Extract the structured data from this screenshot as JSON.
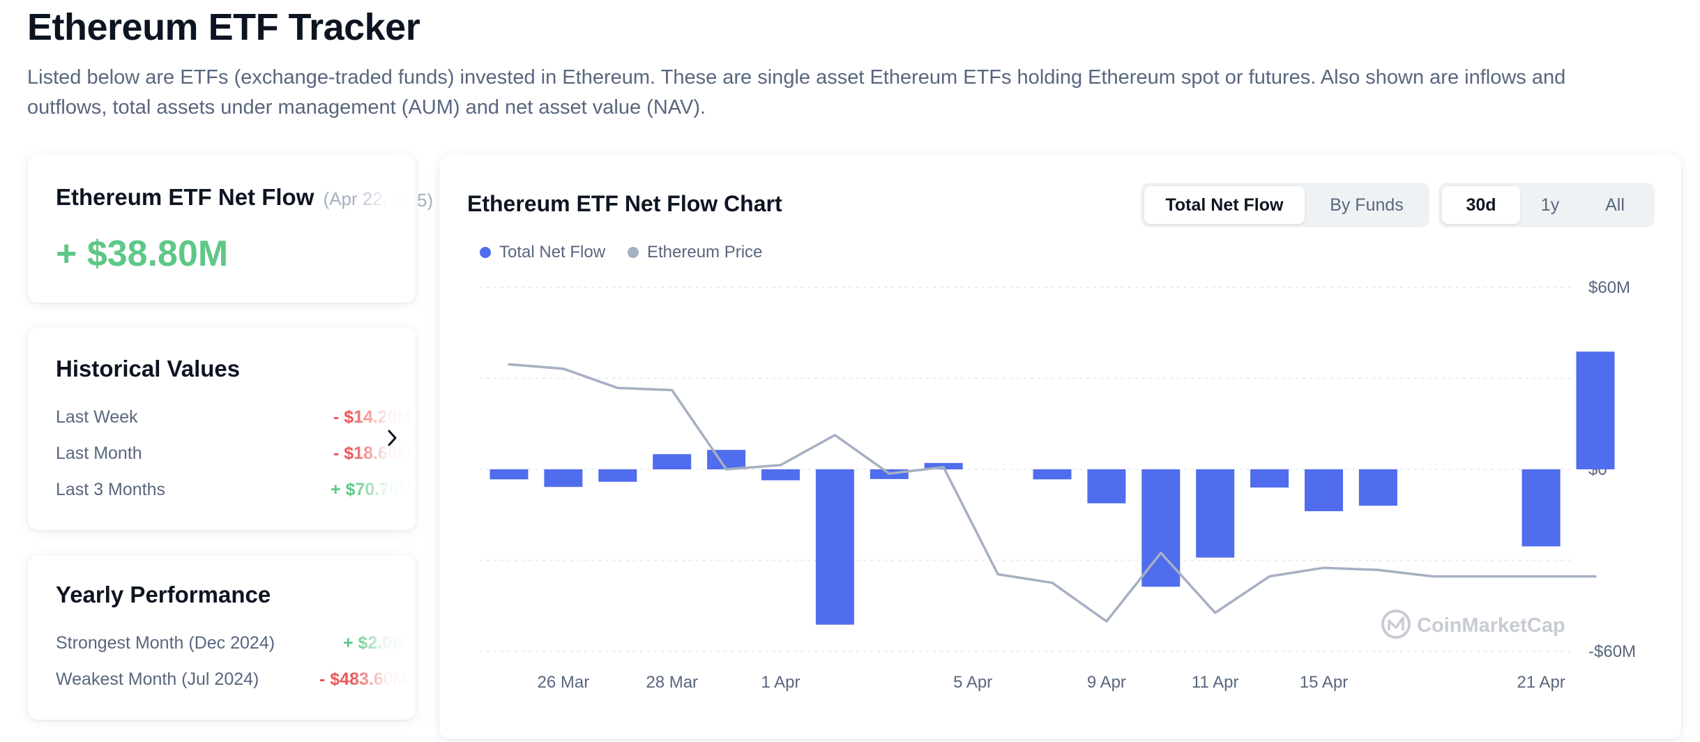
{
  "page": {
    "title": "Ethereum ETF Tracker",
    "description": "Listed below are ETFs (exchange-traded funds) invested in Ethereum. These are single asset Ethereum ETFs holding Ethereum spot or futures. Also shown are inflows and outflows, total assets under management (AUM) and net asset value (NAV)."
  },
  "net_flow_card": {
    "title": "Ethereum ETF Net Flow",
    "date": "(Apr 22, 2025)",
    "value": "+ $38.80M",
    "peek_text": "5)"
  },
  "historical": {
    "title": "Historical Values",
    "rows": [
      {
        "label": "Last Week",
        "value": "- $14.20M"
      },
      {
        "label": "Last Month",
        "value": "- $18.60M"
      },
      {
        "label": "Last 3 Months",
        "value": "+ $70.70M"
      }
    ]
  },
  "yearly": {
    "title": "Yearly Performance",
    "rows": [
      {
        "label": "Strongest Month",
        "period": "(Dec 2024)",
        "value": "+ $2.0B"
      },
      {
        "label": "Weakest Month",
        "period": "(Jul 2024)",
        "value": "- $483.60M"
      }
    ]
  },
  "chart_header": {
    "title": "Ethereum ETF Net Flow Chart",
    "view_tabs": [
      "Total Net Flow",
      "By Funds"
    ],
    "active_view": 0,
    "range_tabs": [
      "30d",
      "1y",
      "All"
    ],
    "active_range": 0,
    "legend": [
      {
        "label": "Total Net Flow",
        "color": "#4f6ded"
      },
      {
        "label": "Ethereum Price",
        "color": "#a6b0c3"
      }
    ],
    "watermark": "CoinMarketCap"
  },
  "colors": {
    "bar": "#4f6ded",
    "price_line": "#a6b0c3",
    "positive": "#5ec787",
    "negative": "#ea5a5a",
    "grid": "#e3e6ea"
  },
  "chart_data": {
    "type": "bar",
    "title": "Ethereum ETF Net Flow Chart",
    "x": [
      "25 Mar",
      "26 Mar",
      "27 Mar",
      "28 Mar",
      "31 Mar",
      "1 Apr",
      "2 Apr",
      "3 Apr",
      "4 Apr",
      "7 Apr",
      "8 Apr",
      "9 Apr",
      "10 Apr",
      "11 Apr",
      "14 Apr",
      "15 Apr",
      "16 Apr",
      "17 Apr",
      "18 Apr",
      "21 Apr",
      "22 Apr"
    ],
    "x_tick_labels": [
      "26 Mar",
      "28 Mar",
      "1 Apr",
      "5 Apr",
      "9 Apr",
      "11 Apr",
      "15 Apr",
      "21 Apr"
    ],
    "y_tick_labels": [
      "$60M",
      "$0",
      "-$60M"
    ],
    "ylim": [
      -60,
      60
    ],
    "unit": "$M",
    "grid": true,
    "legend_position": "top-left",
    "series": [
      {
        "name": "Total Net Flow",
        "type": "bar",
        "values": [
          -3.3,
          -5.8,
          -4.1,
          5.0,
          6.4,
          -3.6,
          -51.2,
          -3.2,
          2.1,
          null,
          -3.3,
          -11.2,
          -38.7,
          -29.1,
          -6.0,
          -13.8,
          -12.0,
          null,
          null,
          -25.4,
          38.8
        ]
      },
      {
        "name": "Ethereum Price",
        "type": "line",
        "values": [
          2070,
          2060,
          2015,
          2010,
          1825,
          1835,
          1905,
          1815,
          1830,
          1580,
          1560,
          1470,
          1630,
          1490,
          1575,
          1595,
          1590,
          1575,
          1575,
          1575,
          1575
        ]
      }
    ]
  }
}
